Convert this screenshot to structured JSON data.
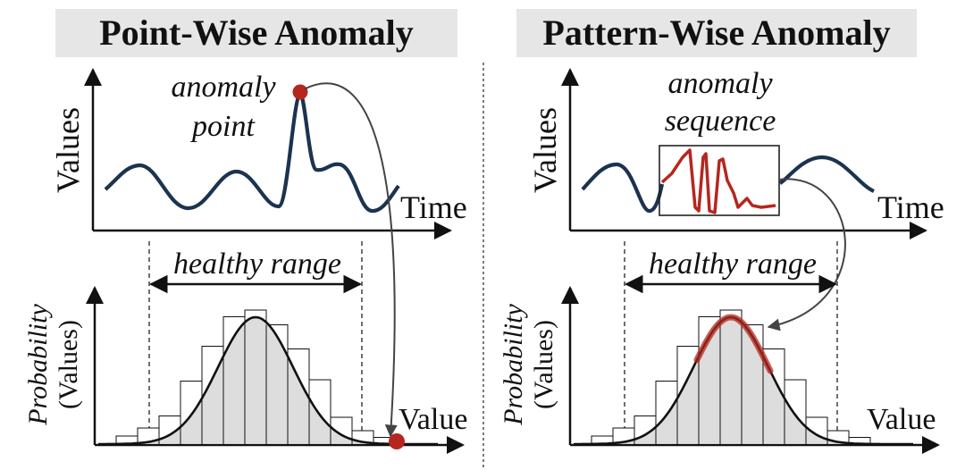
{
  "panels": {
    "left": {
      "title": "Point-Wise Anomaly",
      "top_ylabel": "Values",
      "top_xlabel": "Time",
      "annotation_line1": "anomaly",
      "annotation_line2": "point",
      "range_label": "healthy range",
      "bottom_ylabel_line1": "Probability",
      "bottom_ylabel_line2": "(Values)",
      "bottom_xlabel": "Value"
    },
    "right": {
      "title": "Pattern-Wise Anomaly",
      "top_ylabel": "Values",
      "top_xlabel": "Time",
      "annotation_line1": "anomaly",
      "annotation_line2": "sequence",
      "range_label": "healthy range",
      "bottom_ylabel_line1": "Probability",
      "bottom_ylabel_line2": "(Values)",
      "bottom_xlabel": "Value"
    }
  },
  "histogram_bar_heights": [
    0.06,
    0.12,
    0.21,
    0.47,
    0.73,
    0.95,
    1.0,
    0.89,
    0.71,
    0.48,
    0.2,
    0.1,
    0.05
  ],
  "colors": {
    "signal": "#1c3350",
    "anomaly": "#b6261e",
    "hist_fill": "#d9d9d9",
    "title_bg": "#e6e6e6"
  }
}
